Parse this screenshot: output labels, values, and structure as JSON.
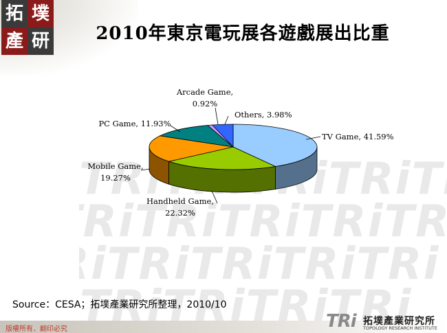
{
  "header": {
    "logo_chars": [
      "拓",
      "墣",
      "產",
      "研"
    ],
    "title": "2010年東京電玩展各遊戲展出比重"
  },
  "chart_data": {
    "type": "pie",
    "title": "",
    "slices": [
      {
        "label": "TV Game, 41.59%",
        "value": 41.59,
        "color": "#99ccff"
      },
      {
        "label": "Handheld Game, 22.32%",
        "value": 22.32,
        "color": "#99cc00"
      },
      {
        "label": "Mobile Game, 19.27%",
        "value": 19.27,
        "color": "#ff9900"
      },
      {
        "label": "PC Game, 11.93%",
        "value": 11.93,
        "color": "#008080"
      },
      {
        "label": "Arcade Game, 0.92%",
        "value": 0.92,
        "color": "#cc99ff"
      },
      {
        "label": "Others, 3.98%",
        "value": 3.98,
        "color": "#3366ff"
      }
    ],
    "label_lines": {
      "tv": [
        "TV Game, 41.59%"
      ],
      "handheld": [
        "Handheld Game,",
        "22.32%"
      ],
      "mobile": [
        "Mobile Game,",
        "19.27%"
      ],
      "pc": [
        "PC Game, 11.93%"
      ],
      "arcade": [
        "Arcade Game,",
        "0.92%"
      ],
      "others": [
        "Others, 3.98%"
      ]
    }
  },
  "watermark": "TRiTRiTRiTRiTRi",
  "source": "Source：CESA；拓墣產業研究所整理，2010/10",
  "footer": {
    "copyright": "版權所有．翻印必究",
    "brand_logo": "TRi",
    "brand_name": "拓墣產業研究所",
    "brand_en": "TOPOLOGY RESEARCH INSTITUTE"
  }
}
